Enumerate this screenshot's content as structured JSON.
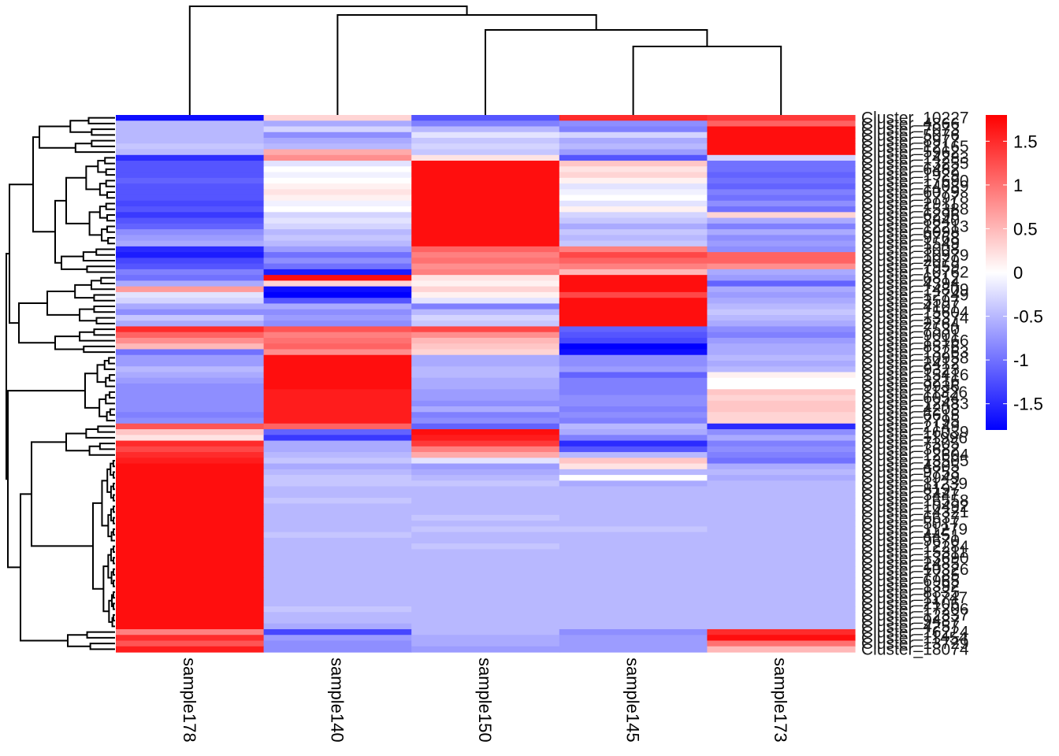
{
  "chart_data": {
    "type": "heatmap",
    "title": "",
    "columns": [
      "sample178",
      "sample140",
      "sample150",
      "sample145",
      "sample173"
    ],
    "row_labels": [
      "Cluster_10227",
      "Cluster_4866",
      "Cluster_7073",
      "Cluster_5076",
      "Cluster_8977",
      "Cluster_12165",
      "Cluster_5962",
      "Cluster_14283",
      "Cluster_13255",
      "Cluster_6482",
      "Cluster_1929",
      "Cluster_17690",
      "Cluster_14089",
      "Cluster_6079",
      "Cluster_17978",
      "Cluster_2911",
      "Cluster_15388",
      "Cluster_6296",
      "Cluster_8840",
      "Cluster_12213",
      "Cluster_6098",
      "Cluster_9768",
      "Cluster_1549",
      "Cluster_3008",
      "Cluster_10979",
      "Cluster_2079",
      "Cluster_7959",
      "Cluster_10762",
      "Cluster_6812",
      "Cluster_4394",
      "Cluster_14809",
      "Cluster_12749",
      "Cluster_3597",
      "Cluster_4107",
      "Cluster_15604",
      "Cluster_13374",
      "Cluster_2764",
      "Cluster_7530",
      "Cluster_9001",
      "Cluster_13166",
      "Cluster_8576",
      "Cluster_13263",
      "Cluster_10958",
      "Cluster_2412",
      "Cluster_9323",
      "Cluster_15416",
      "Cluster_3216",
      "Cluster_9936",
      "Cluster_11326",
      "Cluster_6054",
      "Cluster_12483",
      "Cluster_4203",
      "Cluster_6615",
      "Cluster_7795",
      "Cluster_2149",
      "Cluster_16039",
      "Cluster_11996",
      "Cluster_7305",
      "Cluster_3682",
      "Cluster_12604",
      "Cluster_13505",
      "Cluster_4805",
      "Cluster_9753",
      "Cluster_5949",
      "Cluster_11239",
      "Cluster_8197",
      "Cluster_3447",
      "Cluster_16558",
      "Cluster_10492",
      "Cluster_14321",
      "Cluster_6637",
      "Cluster_5017",
      "Cluster_11279",
      "Cluster_4451",
      "Cluster_9670",
      "Cluster_12284",
      "Cluster_15311",
      "Cluster_13690",
      "Cluster_2485",
      "Cluster_10326",
      "Cluster_7785",
      "Cluster_6965",
      "Cluster_1392",
      "Cluster_8335",
      "Cluster_11747",
      "Cluster_2106",
      "Cluster_17206",
      "Cluster_12337",
      "Cluster_9487",
      "Cluster_4257",
      "Cluster_16224",
      "Cluster_11454",
      "Cluster_13729",
      "Cluster_18074"
    ],
    "values": [
      [
        -1.7,
        0.3,
        -1.2,
        1.5,
        1.4
      ],
      [
        -0.5,
        -0.6,
        -0.9,
        -0.8,
        1.1
      ],
      [
        -0.5,
        -0.3,
        -0.5,
        -0.9,
        1.7
      ],
      [
        -0.5,
        -0.8,
        -0.2,
        -0.3,
        1.7
      ],
      [
        -0.5,
        -0.6,
        -0.4,
        -0.6,
        1.7
      ],
      [
        -0.4,
        -0.5,
        -0.3,
        -0.5,
        1.7
      ],
      [
        -0.5,
        0.6,
        -0.4,
        -0.7,
        1.7
      ],
      [
        -1.5,
        0.8,
        0.2,
        -1.2,
        -0.3
      ],
      [
        -1.2,
        -0.2,
        1.7,
        0.4,
        -1.0
      ],
      [
        -1.2,
        0.0,
        1.7,
        0.2,
        -1.0
      ],
      [
        -1.2,
        -0.1,
        1.7,
        0.3,
        -1.1
      ],
      [
        -1.1,
        0.0,
        1.7,
        0.1,
        -1.0
      ],
      [
        -1.2,
        0.1,
        1.7,
        -0.2,
        -1.1
      ],
      [
        -1.2,
        0.2,
        1.7,
        -0.1,
        -0.9
      ],
      [
        -1.2,
        0.1,
        1.7,
        0.0,
        -1.0
      ],
      [
        -1.3,
        -0.1,
        1.7,
        -0.2,
        -0.8
      ],
      [
        -1.2,
        0.0,
        1.7,
        0.1,
        -1.0
      ],
      [
        -1.4,
        -0.3,
        1.7,
        -0.3,
        0.3
      ],
      [
        -1.2,
        -0.2,
        1.7,
        -0.4,
        -0.6
      ],
      [
        -1.1,
        -0.3,
        1.7,
        -0.6,
        -0.9
      ],
      [
        -0.8,
        -0.5,
        1.7,
        -0.4,
        -0.6
      ],
      [
        -0.7,
        -0.4,
        1.7,
        -0.5,
        -0.8
      ],
      [
        -0.6,
        -0.5,
        1.7,
        -0.4,
        -0.7
      ],
      [
        -1.5,
        -0.7,
        1.1,
        0.9,
        -0.8
      ],
      [
        -1.6,
        -1.0,
        0.9,
        1.3,
        1.1
      ],
      [
        -1.3,
        -0.8,
        1.0,
        1.1,
        1.1
      ],
      [
        -1.2,
        -1.0,
        0.8,
        0.9,
        0.8
      ],
      [
        -0.9,
        -1.6,
        0.9,
        0.5,
        -0.6
      ],
      [
        -1.0,
        1.7,
        0.2,
        1.7,
        -0.7
      ],
      [
        -0.6,
        0.3,
        0.1,
        1.7,
        -1.1
      ],
      [
        0.7,
        -1.7,
        0.3,
        1.7,
        -0.6
      ],
      [
        -0.2,
        -1.8,
        0.1,
        1.3,
        -0.7
      ],
      [
        -0.3,
        -1.2,
        -0.2,
        1.7,
        -0.6
      ],
      [
        -0.6,
        -0.6,
        -0.9,
        1.7,
        -0.5
      ],
      [
        -0.8,
        -0.8,
        -0.5,
        1.7,
        -0.4
      ],
      [
        -0.4,
        -0.7,
        -0.3,
        1.7,
        -0.5
      ],
      [
        -0.6,
        -0.8,
        -0.4,
        1.7,
        -0.6
      ],
      [
        1.5,
        1.2,
        1.3,
        -1.1,
        -0.8
      ],
      [
        1.1,
        0.9,
        0.8,
        -1.2,
        -0.9
      ],
      [
        0.8,
        1.0,
        0.5,
        -1.3,
        -0.7
      ],
      [
        0.5,
        1.1,
        0.4,
        -1.8,
        -0.6
      ],
      [
        -1.0,
        0.8,
        0.3,
        -1.7,
        -0.6
      ],
      [
        -0.7,
        1.7,
        -0.6,
        -0.8,
        -0.5
      ],
      [
        -0.7,
        1.7,
        -0.6,
        -0.8,
        -0.6
      ],
      [
        -0.5,
        1.7,
        -0.5,
        -0.7,
        -0.5
      ],
      [
        -0.6,
        1.7,
        -0.5,
        -1.1,
        0.1
      ],
      [
        -0.7,
        1.7,
        -0.6,
        -0.9,
        0.0
      ],
      [
        -0.8,
        1.7,
        -0.6,
        -0.9,
        0.0
      ],
      [
        -0.8,
        1.6,
        -0.7,
        -0.9,
        0.4
      ],
      [
        -0.8,
        1.6,
        -0.7,
        -0.8,
        0.3
      ],
      [
        -0.8,
        1.6,
        -0.8,
        -0.8,
        0.4
      ],
      [
        -0.8,
        1.6,
        -0.6,
        -0.9,
        0.4
      ],
      [
        -0.9,
        1.6,
        -0.9,
        -0.8,
        0.3
      ],
      [
        -0.8,
        1.6,
        -0.8,
        -0.9,
        0.3
      ],
      [
        1.2,
        1.1,
        -1.1,
        -0.5,
        -1.5
      ],
      [
        0.4,
        -1.1,
        1.7,
        -0.6,
        -0.8
      ],
      [
        0.2,
        -1.4,
        1.6,
        -0.9,
        -0.6
      ],
      [
        1.5,
        -0.6,
        1.4,
        -1.5,
        -0.9
      ],
      [
        1.3,
        -0.6,
        0.9,
        -1.2,
        -0.8
      ],
      [
        1.5,
        -0.5,
        0.6,
        -0.5,
        -0.9
      ],
      [
        1.6,
        -0.4,
        -0.2,
        0.4,
        -1.0
      ],
      [
        1.7,
        -0.6,
        -0.7,
        0.2,
        -0.6
      ],
      [
        1.7,
        -0.5,
        -0.6,
        -0.5,
        -0.5
      ],
      [
        1.7,
        -0.4,
        -0.5,
        0.0,
        -0.6
      ],
      [
        1.7,
        -0.4,
        -0.4,
        -0.6,
        -0.5
      ],
      [
        1.7,
        -0.5,
        -0.5,
        -0.5,
        -0.5
      ],
      [
        1.7,
        -0.5,
        -0.5,
        -0.5,
        -0.5
      ],
      [
        1.7,
        -0.4,
        -0.5,
        -0.5,
        -0.5
      ],
      [
        1.7,
        -0.5,
        -0.5,
        -0.5,
        -0.5
      ],
      [
        1.7,
        -0.5,
        -0.5,
        -0.5,
        -0.5
      ],
      [
        1.7,
        -0.5,
        -0.4,
        -0.5,
        -0.5
      ],
      [
        1.7,
        -0.5,
        -0.5,
        -0.5,
        -0.5
      ],
      [
        1.7,
        -0.5,
        -0.4,
        -0.4,
        -0.5
      ],
      [
        1.7,
        -0.4,
        -0.5,
        -0.5,
        -0.5
      ],
      [
        1.7,
        -0.5,
        -0.5,
        -0.5,
        -0.5
      ],
      [
        1.7,
        -0.5,
        -0.4,
        -0.5,
        -0.5
      ],
      [
        1.7,
        -0.5,
        -0.5,
        -0.5,
        -0.5
      ],
      [
        1.7,
        -0.5,
        -0.5,
        -0.5,
        -0.5
      ],
      [
        1.7,
        -0.5,
        -0.5,
        -0.5,
        -0.5
      ],
      [
        1.7,
        -0.5,
        -0.5,
        -0.5,
        -0.5
      ],
      [
        1.7,
        -0.5,
        -0.5,
        -0.5,
        -0.5
      ],
      [
        1.7,
        -0.5,
        -0.5,
        -0.5,
        -0.5
      ],
      [
        1.7,
        -0.5,
        -0.5,
        -0.5,
        -0.5
      ],
      [
        1.7,
        -0.5,
        -0.5,
        -0.5,
        -0.5
      ],
      [
        1.7,
        -0.5,
        -0.5,
        -0.5,
        -0.5
      ],
      [
        1.7,
        -0.5,
        -0.5,
        -0.5,
        -0.5
      ],
      [
        1.7,
        -0.4,
        -0.5,
        -0.5,
        -0.5
      ],
      [
        1.7,
        -0.5,
        -0.5,
        -0.5,
        -0.5
      ],
      [
        1.7,
        -0.5,
        -0.5,
        -0.5,
        -0.5
      ],
      [
        1.7,
        -0.6,
        -0.5,
        -0.5,
        -0.5
      ],
      [
        0.9,
        -1.3,
        -0.5,
        -0.8,
        1.5
      ],
      [
        1.5,
        -0.7,
        -0.6,
        -0.7,
        1.7
      ],
      [
        1.2,
        -0.8,
        -0.6,
        -0.7,
        1.0
      ],
      [
        1.6,
        -0.8,
        -0.7,
        -0.7,
        0.5
      ]
    ],
    "color_scale": {
      "low": "#0000FF",
      "mid": "#FFFFFF",
      "high": "#FF0000",
      "min": -1.8,
      "max": 1.8
    },
    "legend_ticks": [
      "1.5",
      "1",
      "0.5",
      "0",
      "-0.5",
      "-1",
      "-1.5"
    ],
    "legend_tick_values": [
      1.5,
      1.0,
      0.5,
      0.0,
      -0.5,
      -1.0,
      -1.5
    ],
    "column_dendrogram": true,
    "row_dendrogram": true
  }
}
